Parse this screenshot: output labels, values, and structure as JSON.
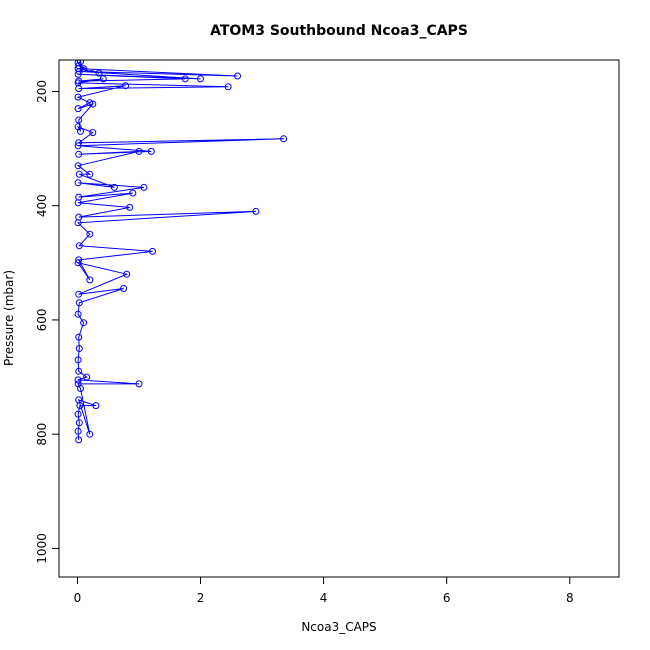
{
  "chart_data": {
    "type": "line",
    "title": "ATOM3 Southbound Ncoa3_CAPS",
    "xlabel": "Ncoa3_CAPS",
    "ylabel": "Pressure (mbar)",
    "xlim": [
      -0.3,
      8.8
    ],
    "ylim": [
      1050,
      145
    ],
    "y_reversed": true,
    "x_ticks": [
      0,
      2,
      4,
      6,
      8
    ],
    "y_ticks": [
      200,
      400,
      600,
      800,
      1000
    ],
    "grid": false,
    "series": [
      {
        "color": "#0000ff",
        "marker": "open-circle",
        "points": [
          [
            0.02,
            810
          ],
          [
            0.01,
            795
          ],
          [
            0.03,
            780
          ],
          [
            0.01,
            765
          ],
          [
            0.04,
            750
          ],
          [
            0.3,
            750
          ],
          [
            0.02,
            740
          ],
          [
            0.2,
            800
          ],
          [
            0.05,
            720
          ],
          [
            0.01,
            712
          ],
          [
            1.0,
            712
          ],
          [
            0.01,
            705
          ],
          [
            0.15,
            700
          ],
          [
            0.02,
            690
          ],
          [
            0.01,
            670
          ],
          [
            0.03,
            650
          ],
          [
            0.02,
            630
          ],
          [
            0.1,
            605
          ],
          [
            0.01,
            590
          ],
          [
            0.03,
            570
          ],
          [
            0.75,
            545
          ],
          [
            0.02,
            555
          ],
          [
            0.8,
            520
          ],
          [
            0.01,
            500
          ],
          [
            0.2,
            530
          ],
          [
            0.02,
            495
          ],
          [
            1.22,
            480
          ],
          [
            0.03,
            470
          ],
          [
            0.2,
            450
          ],
          [
            0.01,
            430
          ],
          [
            2.9,
            410
          ],
          [
            0.02,
            420
          ],
          [
            0.85,
            403
          ],
          [
            0.01,
            395
          ],
          [
            0.9,
            378
          ],
          [
            0.02,
            385
          ],
          [
            1.08,
            368
          ],
          [
            0.01,
            360
          ],
          [
            0.6,
            368
          ],
          [
            0.03,
            345
          ],
          [
            0.2,
            345
          ],
          [
            0.01,
            330
          ],
          [
            1.0,
            305
          ],
          [
            0.02,
            310
          ],
          [
            1.2,
            305
          ],
          [
            0.01,
            295
          ],
          [
            3.35,
            283
          ],
          [
            0.02,
            290
          ],
          [
            0.25,
            272
          ],
          [
            0.01,
            262
          ],
          [
            0.05,
            270
          ],
          [
            0.02,
            250
          ],
          [
            0.25,
            222
          ],
          [
            0.01,
            230
          ],
          [
            0.2,
            220
          ],
          [
            0.01,
            210
          ],
          [
            0.78,
            190
          ],
          [
            0.02,
            195
          ],
          [
            2.45,
            192
          ],
          [
            0.01,
            185
          ],
          [
            0.42,
            178
          ],
          [
            0.02,
            182
          ],
          [
            1.75,
            178
          ],
          [
            0.01,
            170
          ],
          [
            2.0,
            178
          ],
          [
            0.03,
            165
          ],
          [
            2.6,
            173
          ],
          [
            0.01,
            160
          ],
          [
            0.35,
            168
          ],
          [
            0.02,
            155
          ],
          [
            0.1,
            160
          ],
          [
            0.01,
            150
          ],
          [
            0.05,
            148
          ]
        ]
      }
    ]
  }
}
